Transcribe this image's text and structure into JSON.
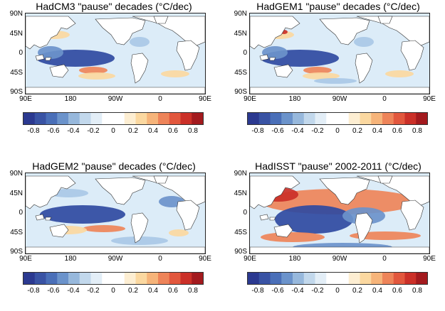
{
  "panels": [
    {
      "id": "hadcm3",
      "title": "HadCM3 \"pause\" decades (°C/dec)"
    },
    {
      "id": "hadgem1",
      "title": "HadGEM1 \"pause\" decades (°C/dec)"
    },
    {
      "id": "hadgem2",
      "title": "HadGEM2 \"pause\" decades (°C/dec)"
    },
    {
      "id": "hadisst",
      "title": "HadISST \"pause\" 2002-2011 (°C/dec)"
    }
  ],
  "axes": {
    "lat_labels": [
      "90N",
      "45N",
      "0",
      "45S",
      "90S"
    ],
    "lon_labels": [
      "90E",
      "180",
      "90W",
      "0",
      "90E"
    ]
  },
  "colorbar": {
    "ticks": [
      "-0.8",
      "-0.6",
      "-0.4",
      "-0.2",
      "0",
      "0.2",
      "0.4",
      "0.6",
      "0.8"
    ],
    "range": [
      -0.9,
      0.9
    ],
    "colors": [
      "#2b3990",
      "#3953a4",
      "#4a6fb8",
      "#6b93cb",
      "#97b8dc",
      "#c2d8ec",
      "#e3eef7",
      "#ffffff",
      "#ffffff",
      "#fdeed2",
      "#fbd8a0",
      "#f6b47a",
      "#ee8459",
      "#e2573d",
      "#cb3028",
      "#a31a1e"
    ]
  },
  "colors": {
    "land": "#ffffff",
    "coast": "#333333",
    "neutral_ocean": "#dcecf8",
    "cold_strong": "#2f4aa1",
    "cold": "#6b93cb",
    "cold_light": "#a9c8e6",
    "warm_light": "#fbd8a0",
    "warm": "#ee8459",
    "warm_strong": "#cb3028"
  }
}
